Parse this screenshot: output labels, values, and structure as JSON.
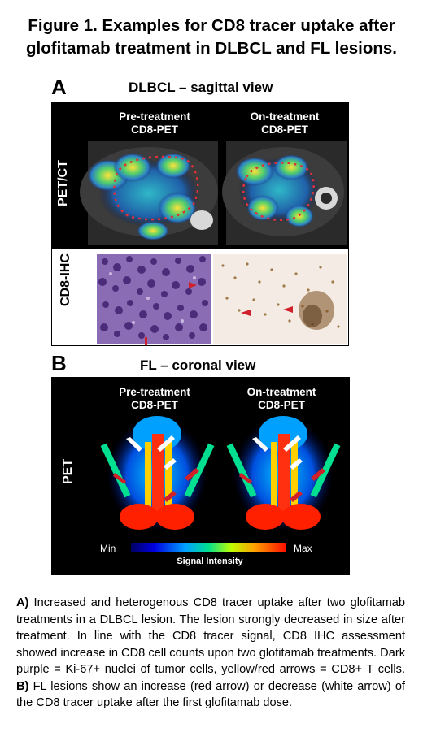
{
  "figure": {
    "title_line1": "Figure 1. Examples for CD8 tracer uptake after",
    "title_line2": "glofitamab treatment in DLBCL and FL lesions."
  },
  "panel_a": {
    "letter": "A",
    "heading": "DLBCL – sagittal view",
    "pre_label_line1": "Pre-treatment",
    "pre_label_line2": "CD8-PET",
    "on_label_line1": "On-treatment",
    "on_label_line2": "CD8-PET",
    "row1_label": "PET/CT",
    "row2_label": "CD8-IHC"
  },
  "panel_b": {
    "letter": "B",
    "heading": "FL – coronal view",
    "pre_label_line1": "Pre-treatment",
    "pre_label_line2": "CD8-PET",
    "on_label_line1": "On-treatment",
    "on_label_line2": "CD8-PET",
    "row_label": "PET",
    "scale_min": "Min",
    "scale_max": "Max",
    "scale_title": "Signal Intensity"
  },
  "caption": {
    "a_marker": "A)",
    "a_text": " Increased and heterogenous CD8 tracer uptake after two glofitamab treatments in a DLBCL lesion. The lesion strongly decreased in size after treatment. In line with the CD8 tracer signal, CD8 IHC assessment showed increase in CD8 cell counts upon two glofitamab treatments. Dark purple = Ki-67+ nuclei of tumor cells, yellow/red arrows = CD8+ T cells. ",
    "b_marker": "B)",
    "b_text": " FL lesions show an increase (red arrow) or decrease (white arrow) of the CD8 tracer uptake after the first glofitamab dose."
  },
  "colors": {
    "panel_background": "#000000",
    "lesion_outline": "#e0303a",
    "ihc_purple": "#6a3c96",
    "ihc_brown": "#8a5a22",
    "arrow_red": "#d0202a",
    "arrow_white": "#ffffff"
  }
}
